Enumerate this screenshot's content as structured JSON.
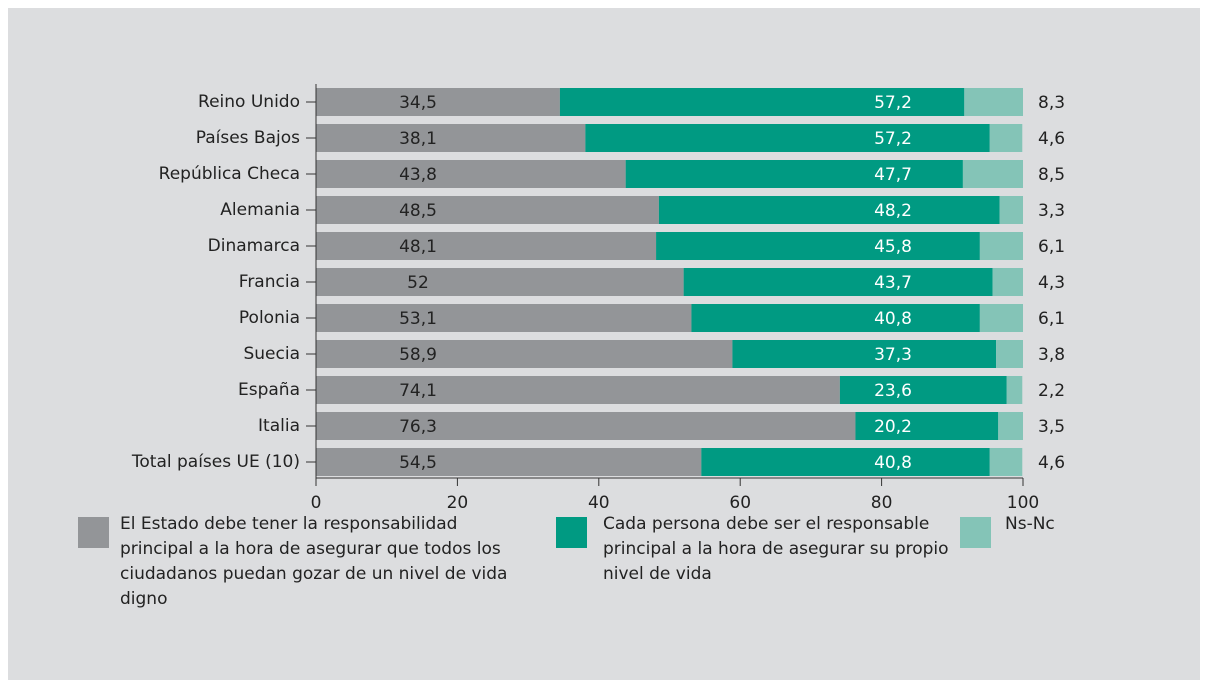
{
  "chart_data": {
    "type": "stacked_barh",
    "categories": [
      "Reino Unido",
      "Países Bajos",
      "República Checa",
      "Alemania",
      "Dinamarca",
      "Francia",
      "Polonia",
      "Suecia",
      "España",
      "Italia",
      "Total países UE (10)"
    ],
    "series": [
      {
        "name": "El Estado debe tener la responsabilidad principal a la hora de asegurar que todos los ciudadanos puedan gozar de un nivel de vida digno",
        "color": "#939598",
        "values": [
          34.5,
          38.1,
          43.8,
          48.5,
          48.1,
          52,
          53.1,
          58.9,
          74.1,
          76.3,
          54.5
        ],
        "value_labels": [
          "34,5",
          "38,1",
          "43,8",
          "48,5",
          "48,1",
          "52",
          "53,1",
          "58,9",
          "74,1",
          "76,3",
          "54,5"
        ]
      },
      {
        "name": "Cada persona debe ser el responsable principal a la hora de asegurar su propio nivel de vida",
        "color": "#009a82",
        "values": [
          57.2,
          57.2,
          47.7,
          48.2,
          45.8,
          43.7,
          40.8,
          37.3,
          23.6,
          20.2,
          40.8
        ],
        "value_labels": [
          "57,2",
          "57,2",
          "47,7",
          "48,2",
          "45,8",
          "43,7",
          "40,8",
          "37,3",
          "23,6",
          "20,2",
          "40,8"
        ]
      },
      {
        "name": "Ns-Nc",
        "color": "#84c4b7",
        "values": [
          8.3,
          4.6,
          8.5,
          3.3,
          6.1,
          4.3,
          6.1,
          3.8,
          2.2,
          3.5,
          4.6
        ],
        "value_labels": [
          "8,3",
          "4,6",
          "8,5",
          "3,3",
          "6,1",
          "4,3",
          "6,1",
          "3,8",
          "2,2",
          "3,5",
          "4,6"
        ]
      }
    ],
    "xlim": [
      0,
      100
    ],
    "xticks": [
      0,
      20,
      40,
      60,
      80,
      100
    ]
  }
}
